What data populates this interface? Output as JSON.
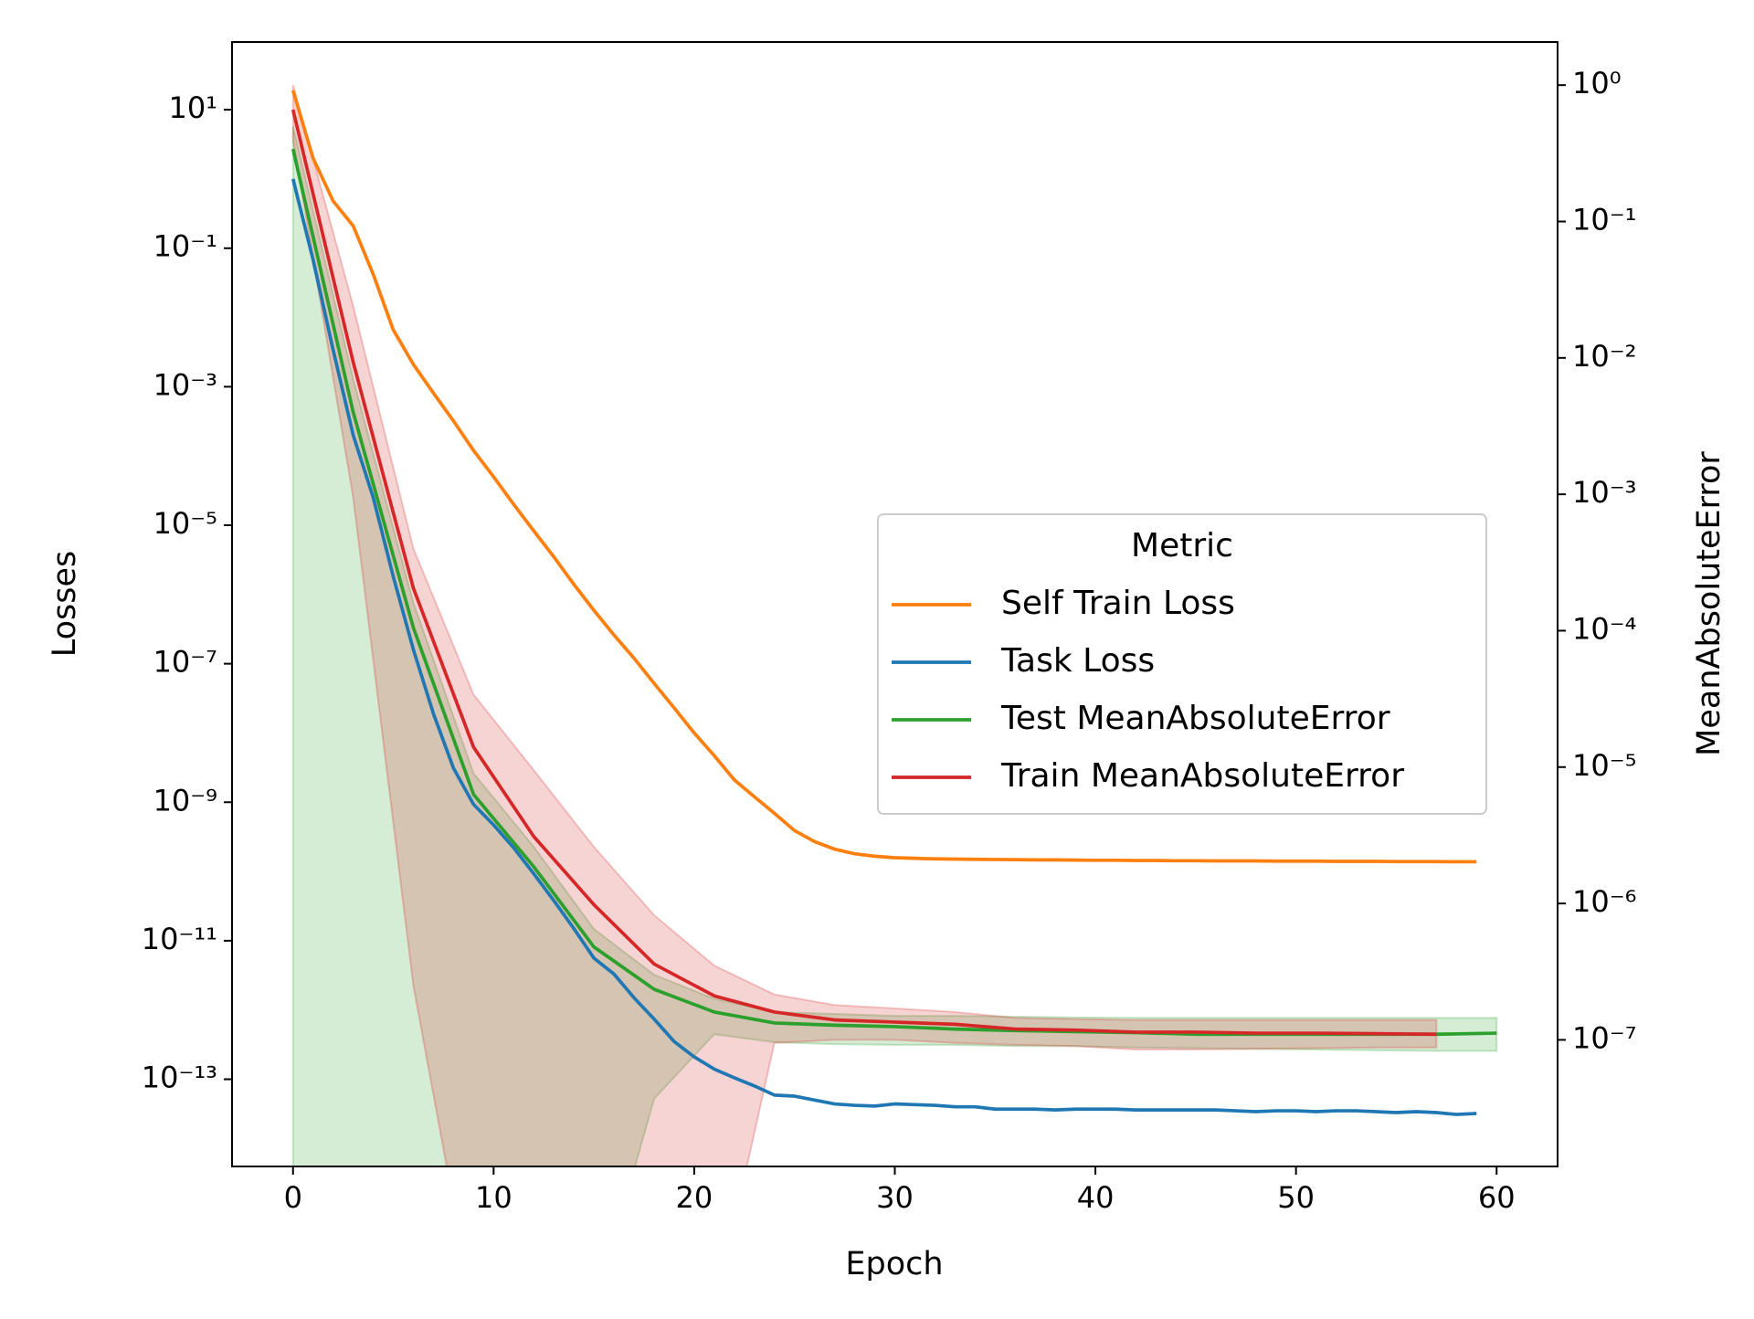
{
  "chart_data": {
    "type": "line",
    "xlabel": "Epoch",
    "ylabel": "Losses",
    "y2label": "MeanAbsoluteError",
    "yscale": "log",
    "y2scale": "log",
    "xlim": [
      -3.04,
      63.04
    ],
    "ylim": [
      5.5e-15,
      95
    ],
    "y2lim": [
      1.18e-08,
      2.07
    ],
    "xticks": [
      0,
      10,
      20,
      30,
      40,
      50,
      60
    ],
    "yticks": [
      {
        "value": 10,
        "label": "10¹"
      },
      {
        "value": 0.1,
        "label": "10⁻¹"
      },
      {
        "value": 0.001,
        "label": "10⁻³"
      },
      {
        "value": 1e-05,
        "label": "10⁻⁵"
      },
      {
        "value": 1e-07,
        "label": "10⁻⁷"
      },
      {
        "value": 1e-09,
        "label": "10⁻⁹"
      },
      {
        "value": 1e-11,
        "label": "10⁻¹¹"
      },
      {
        "value": 1e-13,
        "label": "10⁻¹³"
      }
    ],
    "y2ticks": [
      {
        "value": 1,
        "label": "10⁰"
      },
      {
        "value": 0.1,
        "label": "10⁻¹"
      },
      {
        "value": 0.01,
        "label": "10⁻²"
      },
      {
        "value": 0.001,
        "label": "10⁻³"
      },
      {
        "value": 0.0001,
        "label": "10⁻⁴"
      },
      {
        "value": 1e-05,
        "label": "10⁻⁵"
      },
      {
        "value": 1e-06,
        "label": "10⁻⁶"
      },
      {
        "value": 1e-07,
        "label": "10⁻⁷"
      }
    ],
    "legend_title": "Metric",
    "legend_position": "right",
    "series": [
      {
        "name": "Self Train Loss",
        "color": "#ff7f0e",
        "axis": "y",
        "x": [
          0,
          1,
          2,
          3,
          4,
          5,
          6,
          7,
          8,
          9,
          10,
          11,
          12,
          13,
          14,
          15,
          16,
          17,
          18,
          19,
          20,
          21,
          22,
          23,
          24,
          25,
          26,
          27,
          28,
          29,
          30,
          31,
          32,
          33,
          34,
          35,
          36,
          37,
          38,
          39,
          40,
          41,
          42,
          43,
          44,
          45,
          46,
          47,
          48,
          49,
          50,
          51,
          52,
          53,
          54,
          55,
          56,
          57,
          58,
          59
        ],
        "values": [
          19,
          2,
          0.48,
          0.21,
          0.042,
          0.0066,
          0.0021,
          0.00081,
          0.00032,
          0.00012,
          5e-05,
          2e-05,
          8.3e-06,
          3.5e-06,
          1.4e-06,
          5.9e-07,
          2.6e-07,
          1.2e-07,
          5.2e-08,
          2.3e-08,
          1e-08,
          4.7e-09,
          2.1e-09,
          1.2e-09,
          6.9e-10,
          3.9e-10,
          2.7e-10,
          2.1e-10,
          1.8e-10,
          1.66e-10,
          1.58e-10,
          1.55e-10,
          1.52e-10,
          1.51e-10,
          1.5e-10,
          1.49e-10,
          1.48e-10,
          1.47e-10,
          1.47e-10,
          1.46e-10,
          1.45e-10,
          1.45e-10,
          1.44e-10,
          1.44e-10,
          1.43e-10,
          1.43e-10,
          1.42e-10,
          1.42e-10,
          1.42e-10,
          1.41e-10,
          1.41e-10,
          1.41e-10,
          1.4e-10,
          1.4e-10,
          1.4e-10,
          1.39e-10,
          1.39e-10,
          1.39e-10,
          1.38e-10,
          1.38e-10
        ]
      },
      {
        "name": "Task Loss",
        "color": "#1f77b4",
        "axis": "y",
        "x": [
          0,
          1,
          2,
          3,
          4,
          5,
          6,
          7,
          8,
          9,
          10,
          11,
          12,
          13,
          14,
          15,
          16,
          17,
          18,
          19,
          20,
          21,
          22,
          23,
          24,
          25,
          26,
          27,
          28,
          29,
          30,
          31,
          32,
          33,
          34,
          35,
          36,
          37,
          38,
          39,
          40,
          41,
          42,
          43,
          44,
          45,
          46,
          47,
          48,
          49,
          50,
          51,
          52,
          53,
          54,
          55,
          56,
          57,
          58,
          59
        ],
        "values": [
          1.0,
          0.068,
          0.0034,
          0.0002,
          2.5e-05,
          1.8e-06,
          1.6e-07,
          1.9e-08,
          3.1e-09,
          9.3e-10,
          4.7e-10,
          2.2e-10,
          9.3e-11,
          3.8e-11,
          1.5e-11,
          5.6e-12,
          3.3e-12,
          1.5e-12,
          7.4e-13,
          3.5e-13,
          2.1e-13,
          1.4e-13,
          1.05e-13,
          8e-14,
          5.9e-14,
          5.7e-14,
          5e-14,
          4.4e-14,
          4.2e-14,
          4.1e-14,
          4.4e-14,
          4.3e-14,
          4.2e-14,
          4e-14,
          4e-14,
          3.7e-14,
          3.7e-14,
          3.7e-14,
          3.6e-14,
          3.7e-14,
          3.7e-14,
          3.7e-14,
          3.6e-14,
          3.6e-14,
          3.6e-14,
          3.6e-14,
          3.6e-14,
          3.5e-14,
          3.4e-14,
          3.5e-14,
          3.5e-14,
          3.4e-14,
          3.5e-14,
          3.5e-14,
          3.4e-14,
          3.3e-14,
          3.4e-14,
          3.3e-14,
          3.1e-14,
          3.2e-14
        ]
      },
      {
        "name": "Test MeanAbsoluteError",
        "color": "#2ca02c",
        "axis": "y2",
        "x": [
          0,
          3,
          6,
          9,
          12,
          15,
          18,
          21,
          24,
          27,
          30,
          33,
          36,
          39,
          42,
          45,
          48,
          51,
          54,
          57,
          60
        ],
        "values": [
          0.34,
          0.004,
          0.000105,
          6.3e-06,
          1.86e-06,
          4.8e-07,
          2.35e-07,
          1.6e-07,
          1.33e-07,
          1.28e-07,
          1.25e-07,
          1.2e-07,
          1.17e-07,
          1.15e-07,
          1.13e-07,
          1.1e-07,
          1.1e-07,
          1.1e-07,
          1.1e-07,
          1.1e-07,
          1.12e-07
        ],
        "upper": [
          0.5,
          0.007,
          0.00016,
          9e-06,
          2.6e-06,
          6.5e-07,
          3e-07,
          2e-07,
          1.6e-07,
          1.55e-07,
          1.5e-07,
          1.5e-07,
          1.48e-07,
          1.46e-07,
          1.45e-07,
          1.45e-07,
          1.45e-07,
          1.45e-07,
          1.45e-07,
          1.45e-07,
          1.45e-07
        ],
        "lower": [
          1e-09,
          1e-09,
          1e-09,
          1e-09,
          1e-09,
          1e-09,
          3.7e-08,
          1.1e-07,
          9.6e-08,
          9.3e-08,
          9.2e-08,
          9.2e-08,
          9e-08,
          9e-08,
          8.8e-08,
          8.7e-08,
          8.6e-08,
          8.5e-08,
          8.4e-08,
          8.3e-08,
          8.3e-08
        ]
      },
      {
        "name": "Train MeanAbsoluteError",
        "color": "#d62728",
        "axis": "y2",
        "x": [
          0,
          3,
          6,
          9,
          12,
          15,
          18,
          21,
          24,
          27,
          30,
          33,
          36,
          39,
          42,
          45,
          48,
          51,
          54,
          57
        ],
        "values": [
          0.66,
          0.0093,
          0.000205,
          1.4e-05,
          3.1e-06,
          9.8e-07,
          3.6e-07,
          2.1e-07,
          1.6e-07,
          1.4e-07,
          1.35e-07,
          1.3e-07,
          1.2e-07,
          1.18e-07,
          1.14e-07,
          1.14e-07,
          1.12e-07,
          1.12e-07,
          1.11e-07,
          1.1e-07
        ],
        "upper": [
          1.0,
          0.024,
          0.0004,
          3.4e-05,
          9.5e-06,
          2.6e-06,
          8.2e-07,
          3.5e-07,
          2.15e-07,
          1.8e-07,
          1.7e-07,
          1.6e-07,
          1.45e-07,
          1.42e-07,
          1.4e-07,
          1.4e-07,
          1.4e-07,
          1.4e-07,
          1.4e-07,
          1.4e-07
        ],
        "lower": [
          0.4,
          0.00095,
          2.5e-07,
          1e-09,
          1e-09,
          1e-09,
          1e-09,
          1e-09,
          9.5e-08,
          1e-07,
          1e-07,
          9.5e-08,
          9.2e-08,
          9e-08,
          8.5e-08,
          8.5e-08,
          8.6e-08,
          8.7e-08,
          8.8e-08,
          8.8e-08
        ]
      }
    ]
  }
}
